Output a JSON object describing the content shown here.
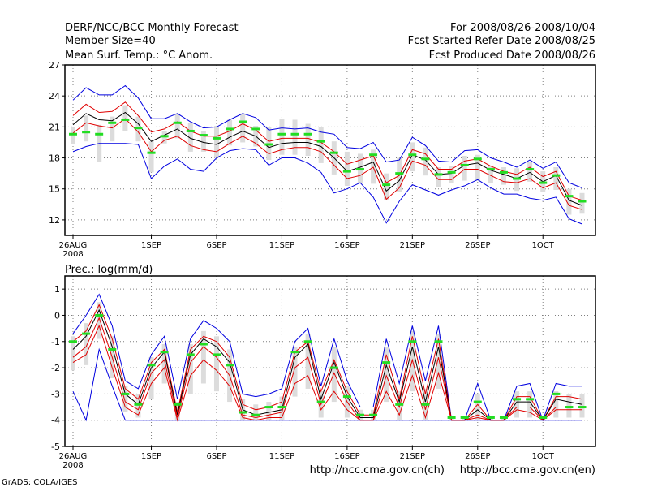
{
  "header": {
    "title": "DERF/NCC/BCC Monthly Forecast",
    "member_size": "Member Size=40",
    "period": "For 2008/08/26-2008/10/04",
    "fcst_started": "Fcst Started Refer Date 2008/08/25",
    "fcst_produced": "Fcst Produced Date 2008/08/26"
  },
  "footer": {
    "credit": "GrADS: COLA/IGES",
    "url_ch": "http://ncc.cma.gov.cn(ch)",
    "url_en": "http://bcc.cma.gov.cn(en)"
  },
  "colors": {
    "spread": "#dcdcdc",
    "ensemble_max_min": "#0000e0",
    "ensemble_quartiles": "#e00000",
    "ensemble_mean": "#000000",
    "member_marker": "#22dd22",
    "grid": "#7f7f7f"
  },
  "chart_data": [
    {
      "type": "line",
      "title": "Mean Surf. Temp.: °C Anom.",
      "xlabel": "",
      "ylabel": "",
      "ylim": [
        10.5,
        27
      ],
      "yticks": [
        12,
        15,
        18,
        21,
        24,
        27
      ],
      "x_tick_labels": [
        {
          "day": 0,
          "label": "26AUG",
          "sub": "2008"
        },
        {
          "day": 6,
          "label": "1SEP"
        },
        {
          "day": 11,
          "label": "6SEP"
        },
        {
          "day": 16,
          "label": "11SEP"
        },
        {
          "day": 21,
          "label": "16SEP"
        },
        {
          "day": 26,
          "label": "21SEP"
        },
        {
          "day": 31,
          "label": "26SEP"
        },
        {
          "day": 36,
          "label": "1OCT"
        }
      ],
      "grid": true,
      "series": [
        {
          "name": "max",
          "values": [
            23.6,
            24.8,
            24.1,
            24.1,
            25.0,
            23.8,
            21.8,
            21.8,
            22.3,
            21.5,
            20.9,
            21.0,
            21.7,
            22.3,
            21.9,
            20.7,
            20.9,
            20.8,
            20.9,
            20.5,
            20.3,
            19.0,
            18.9,
            19.5,
            17.6,
            17.8,
            20.0,
            19.2,
            17.7,
            17.6,
            18.7,
            18.8,
            18.0,
            17.6,
            17.1,
            17.8,
            17.0,
            17.6,
            15.6,
            15.1
          ]
        },
        {
          "name": "q3",
          "values": [
            22.1,
            23.2,
            22.4,
            22.5,
            23.4,
            22.1,
            20.5,
            20.8,
            21.5,
            20.6,
            20.1,
            20.1,
            20.6,
            21.3,
            20.7,
            19.6,
            19.9,
            19.9,
            19.9,
            19.5,
            18.6,
            17.4,
            17.8,
            18.2,
            15.6,
            16.3,
            18.8,
            18.4,
            16.9,
            16.9,
            17.7,
            17.9,
            17.2,
            16.7,
            16.4,
            17.1,
            16.2,
            16.7,
            14.3,
            13.9
          ]
        },
        {
          "name": "mean",
          "values": [
            21.2,
            22.3,
            21.7,
            21.6,
            22.4,
            21.3,
            19.6,
            20.2,
            20.8,
            19.9,
            19.5,
            19.3,
            20.0,
            20.6,
            20.1,
            19.0,
            19.4,
            19.5,
            19.5,
            19.1,
            18.0,
            16.7,
            17.1,
            17.6,
            14.8,
            15.8,
            18.3,
            17.8,
            16.4,
            16.5,
            17.3,
            17.5,
            16.8,
            16.4,
            16.0,
            16.6,
            15.7,
            16.3,
            13.9,
            13.4
          ]
        },
        {
          "name": "q1",
          "values": [
            20.4,
            21.4,
            21.1,
            20.9,
            21.8,
            20.5,
            18.6,
            19.7,
            20.1,
            19.2,
            18.8,
            18.6,
            19.4,
            20.1,
            19.4,
            18.4,
            18.8,
            19.0,
            19.0,
            18.6,
            17.3,
            16.0,
            16.3,
            17.1,
            14.0,
            15.1,
            17.7,
            17.3,
            15.9,
            15.9,
            16.9,
            16.9,
            16.3,
            15.7,
            15.6,
            16.0,
            15.1,
            15.6,
            13.4,
            13.0
          ]
        },
        {
          "name": "min",
          "values": [
            18.6,
            19.1,
            19.4,
            19.4,
            19.4,
            19.3,
            16.0,
            17.2,
            17.9,
            16.9,
            16.7,
            18.0,
            18.7,
            18.9,
            18.8,
            17.3,
            18.0,
            18.0,
            17.5,
            16.6,
            14.6,
            15.0,
            15.6,
            14.2,
            11.7,
            13.8,
            15.4,
            14.9,
            14.4,
            14.9,
            15.3,
            15.9,
            15.1,
            14.5,
            14.5,
            14.1,
            13.9,
            14.2,
            12.1,
            11.6
          ]
        },
        {
          "name": "member",
          "values": [
            20.3,
            20.5,
            20.3,
            21.4,
            21.7,
            20.9,
            18.5,
            20.1,
            21.4,
            20.6,
            20.2,
            19.9,
            20.8,
            21.5,
            20.8,
            19.3,
            20.3,
            20.3,
            20.3,
            19.6,
            18.5,
            16.7,
            16.9,
            18.3,
            15.4,
            16.5,
            18.3,
            17.9,
            16.4,
            16.6,
            17.3,
            17.9,
            16.9,
            16.6,
            16.0,
            16.9,
            15.6,
            16.3,
            14.3,
            13.8
          ]
        }
      ],
      "spread": {
        "lo": [
          19.3,
          19.6,
          17.6,
          19.6,
          20.6,
          19.6,
          16.6,
          19.4,
          19.9,
          18.6,
          18.6,
          18.0,
          19.2,
          19.5,
          19.1,
          17.8,
          18.3,
          18.3,
          18.2,
          17.5,
          16.4,
          15.3,
          15.5,
          15.5,
          13.9,
          14.7,
          16.7,
          16.3,
          15.2,
          15.6,
          15.8,
          15.8,
          15.6,
          15.4,
          14.8,
          15.7,
          14.7,
          14.9,
          12.5,
          12.6
        ],
        "hi": [
          21.0,
          22.1,
          21.2,
          22.0,
          23.1,
          22.0,
          19.6,
          20.6,
          22.3,
          21.4,
          20.6,
          21.1,
          21.7,
          22.3,
          21.1,
          21.0,
          21.8,
          21.7,
          21.3,
          21.0,
          19.6,
          18.6,
          18.4,
          18.8,
          16.5,
          18.0,
          19.5,
          19.0,
          17.1,
          17.2,
          18.2,
          18.3,
          17.2,
          17.1,
          17.0,
          17.6,
          16.7,
          17.1,
          15.0,
          14.6
        ]
      }
    },
    {
      "type": "line",
      "title": "Prec.: log(mm/d)",
      "xlabel": "",
      "ylabel": "",
      "ylim": [
        -5,
        1.5
      ],
      "yticks": [
        -5,
        -4,
        -3,
        -2,
        -1,
        0,
        1
      ],
      "x_tick_labels": [
        {
          "day": 0,
          "label": "26AUG",
          "sub": "2008"
        },
        {
          "day": 6,
          "label": "1SEP"
        },
        {
          "day": 11,
          "label": "6SEP"
        },
        {
          "day": 16,
          "label": "11SEP"
        },
        {
          "day": 21,
          "label": "16SEP"
        },
        {
          "day": 26,
          "label": "21SEP"
        },
        {
          "day": 31,
          "label": "26SEP"
        },
        {
          "day": 36,
          "label": "1OCT"
        }
      ],
      "grid": true,
      "series": [
        {
          "name": "max",
          "values": [
            -0.7,
            0.0,
            0.8,
            -0.4,
            -2.5,
            -2.8,
            -1.5,
            -0.8,
            -3.2,
            -0.9,
            -0.2,
            -0.5,
            -1.0,
            -3.0,
            -3.1,
            -3.0,
            -2.8,
            -1.0,
            -0.5,
            -2.7,
            -0.9,
            -2.5,
            -3.5,
            -3.5,
            -0.9,
            -2.6,
            -0.4,
            -2.5,
            -0.4,
            -4.0,
            -4.0,
            -2.6,
            -4.0,
            -4.0,
            -2.7,
            -2.6,
            -4.0,
            -2.6,
            -2.7,
            -2.7
          ]
        },
        {
          "name": "q3",
          "values": [
            -1.0,
            -0.6,
            0.4,
            -0.9,
            -2.8,
            -3.2,
            -1.8,
            -1.3,
            -3.7,
            -1.3,
            -0.8,
            -1.0,
            -1.6,
            -3.4,
            -3.6,
            -3.5,
            -3.3,
            -1.4,
            -1.0,
            -2.9,
            -1.7,
            -2.9,
            -3.8,
            -3.8,
            -1.5,
            -3.2,
            -0.8,
            -3.0,
            -0.9,
            -4.0,
            -4.0,
            -3.4,
            -4.0,
            -4.0,
            -3.1,
            -3.1,
            -4.0,
            -3.1,
            -3.1,
            -3.2
          ]
        },
        {
          "name": "mean",
          "values": [
            -1.3,
            -0.8,
            0.2,
            -1.2,
            -3.0,
            -3.4,
            -2.0,
            -1.4,
            -3.8,
            -1.5,
            -0.9,
            -1.2,
            -1.8,
            -3.6,
            -3.8,
            -3.7,
            -3.6,
            -1.6,
            -1.1,
            -3.2,
            -1.8,
            -3.1,
            -3.9,
            -3.9,
            -1.9,
            -3.3,
            -1.2,
            -3.3,
            -1.2,
            -4.0,
            -4.0,
            -3.6,
            -4.0,
            -4.0,
            -3.3,
            -3.3,
            -4.0,
            -3.2,
            -3.3,
            -3.4
          ]
        },
        {
          "name": "q1",
          "values": [
            -1.6,
            -1.2,
            -0.1,
            -1.6,
            -3.3,
            -3.6,
            -2.2,
            -1.7,
            -3.9,
            -1.8,
            -1.2,
            -1.6,
            -2.3,
            -3.8,
            -3.9,
            -3.8,
            -3.7,
            -2.0,
            -1.6,
            -3.4,
            -2.2,
            -3.3,
            -4.0,
            -4.0,
            -2.3,
            -3.5,
            -1.7,
            -3.6,
            -1.6,
            -4.0,
            -4.0,
            -3.8,
            -4.0,
            -4.0,
            -3.5,
            -3.5,
            -4.0,
            -3.5,
            -3.5,
            -3.5
          ]
        },
        {
          "name": "min",
          "values": [
            -2.9,
            -4.0,
            -1.3,
            -2.7,
            -4.0,
            -4.0,
            -4.0,
            -4.0,
            -4.0,
            -4.0,
            -4.0,
            -4.0,
            -4.0,
            -4.0,
            -4.0,
            -4.0,
            -4.0,
            -4.0,
            -4.0,
            -4.0,
            -4.0,
            -4.0,
            -4.0,
            -4.0,
            -4.0,
            -4.0,
            -4.0,
            -4.0,
            -4.0,
            -4.0,
            -4.0,
            -4.0,
            -4.0,
            -4.0,
            -4.0,
            -4.0,
            -4.0,
            -4.0,
            -4.0,
            -4.0
          ]
        },
        {
          "name": "min_red",
          "values": [
            -1.8,
            -1.5,
            -0.4,
            -2.0,
            -3.5,
            -3.8,
            -2.6,
            -2.0,
            -4.0,
            -2.3,
            -1.7,
            -2.1,
            -2.7,
            -3.9,
            -4.0,
            -3.9,
            -3.9,
            -2.6,
            -2.3,
            -3.6,
            -2.9,
            -3.6,
            -4.0,
            -4.0,
            -2.9,
            -3.8,
            -2.3,
            -3.9,
            -2.2,
            -4.0,
            -4.0,
            -3.9,
            -4.0,
            -4.0,
            -3.6,
            -3.7,
            -4.0,
            -3.6,
            -3.6,
            -3.6
          ]
        },
        {
          "name": "member",
          "values": [
            -1.0,
            -0.7,
            0.0,
            -1.3,
            -3.0,
            -3.4,
            -1.9,
            -1.4,
            -3.4,
            -1.5,
            -1.1,
            -1.5,
            -1.9,
            -3.7,
            -3.8,
            -3.5,
            -3.5,
            -1.4,
            -1.0,
            -3.3,
            -2.0,
            -3.1,
            -3.8,
            -3.8,
            -1.8,
            -3.4,
            -1.0,
            -3.4,
            -1.0,
            -3.9,
            -3.9,
            -3.3,
            -3.9,
            -3.9,
            -3.2,
            -3.2,
            -3.9,
            -3.0,
            -3.5,
            -3.5
          ]
        }
      ],
      "spread": {
        "lo": [
          -2.1,
          -1.9,
          -0.9,
          -2.4,
          -3.7,
          -3.9,
          -3.2,
          -2.6,
          -4.0,
          -3.0,
          -2.6,
          -2.9,
          -3.3,
          -4.0,
          -4.0,
          -4.0,
          -4.0,
          -3.1,
          -2.8,
          -3.9,
          -3.3,
          -3.9,
          -4.0,
          -4.0,
          -3.3,
          -4.0,
          -2.9,
          -4.0,
          -2.8,
          -4.0,
          -4.0,
          -4.0,
          -4.0,
          -4.0,
          -3.9,
          -3.9,
          -4.0,
          -3.9,
          -3.9,
          -3.9
        ],
        "hi": [
          -0.8,
          -0.3,
          0.5,
          -0.8,
          -2.7,
          -3.0,
          -1.6,
          -1.1,
          -3.3,
          -1.1,
          -0.6,
          -0.8,
          -1.3,
          -3.2,
          -3.4,
          -3.3,
          -3.1,
          -1.2,
          -0.7,
          -2.9,
          -1.2,
          -2.7,
          -3.6,
          -3.6,
          -1.2,
          -2.9,
          -0.6,
          -2.8,
          -0.7,
          -3.9,
          -3.9,
          -3.0,
          -3.9,
          -3.9,
          -2.9,
          -2.9,
          -3.9,
          -2.9,
          -3.0,
          -3.0
        ]
      }
    }
  ]
}
